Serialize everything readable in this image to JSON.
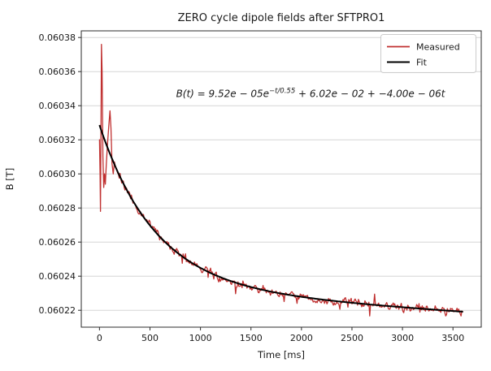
{
  "figure": {
    "background": "#ffffff",
    "text_color": "#1a1a1a",
    "spine_color": "#2b2b2b",
    "grid_color": "#d6d6d6"
  },
  "chart_data": {
    "type": "line",
    "title": "ZERO cycle dipole fields after SFTPRO1",
    "xlabel": "Time [ms]",
    "ylabel": "B [T]",
    "xlim": [
      -180,
      3780
    ],
    "ylim": [
      0.0602101,
      0.0603839
    ],
    "x_ticks": [
      0,
      500,
      1000,
      1500,
      2000,
      2500,
      3000,
      3500
    ],
    "x_tick_labels": [
      "0",
      "500",
      "1000",
      "1500",
      "2000",
      "2500",
      "3000",
      "3500"
    ],
    "y_ticks": [
      0.06022,
      0.06024,
      0.06026,
      0.06028,
      0.0603,
      0.06032,
      0.06034,
      0.06036,
      0.06038
    ],
    "y_tick_labels": [
      "0.06022",
      "0.06024",
      "0.06026",
      "0.06028",
      "0.06030",
      "0.06032",
      "0.06034",
      "0.06036",
      "0.06038"
    ],
    "grid": "horizontal",
    "legend_position": "upper right",
    "series": [
      {
        "name": "Measured",
        "color": "#c03030",
        "style": "noisy measured signal following fit",
        "t_range_ms": [
          0,
          3600
        ],
        "transient_points": [
          [
            0,
            0.06032
          ],
          [
            6,
            0.0603
          ],
          [
            10,
            0.060278
          ],
          [
            16,
            0.06034
          ],
          [
            20,
            0.060376
          ],
          [
            26,
            0.06036
          ],
          [
            34,
            0.06031
          ],
          [
            42,
            0.060292
          ],
          [
            50,
            0.0603
          ],
          [
            58,
            0.060294
          ],
          [
            68,
            0.060306
          ],
          [
            80,
            0.060318
          ],
          [
            92,
            0.060328
          ],
          [
            104,
            0.060337
          ],
          [
            114,
            0.060327
          ],
          [
            124,
            0.060306
          ],
          [
            136,
            0.0603
          ],
          [
            148,
            0.060307
          ]
        ],
        "noise": {
          "seed": 20,
          "t_start": 156,
          "step_ms": 8,
          "white": 3.2e-06,
          "spike": 4.5e-06,
          "spike_prob": 0.06,
          "ar": 0.45
        }
      },
      {
        "name": "Fit",
        "color": "#000000",
        "model": "B(t) = A*exp(-t/tau) + c + d*t",
        "params": {
          "A": 9.52e-05,
          "tau_ms": 550,
          "c": 0.0602334,
          "d_per_ms": -4e-09
        },
        "t_range_ms": [
          0,
          3600
        ]
      }
    ],
    "annotation": {
      "prefix": "B(t) = 9.52e − 05e",
      "superscript": "−t/0.55",
      "suffix": " + 6.02e − 02 + −4.00e − 06t",
      "x_ms": 2090,
      "y_T": 0.060345
    }
  }
}
